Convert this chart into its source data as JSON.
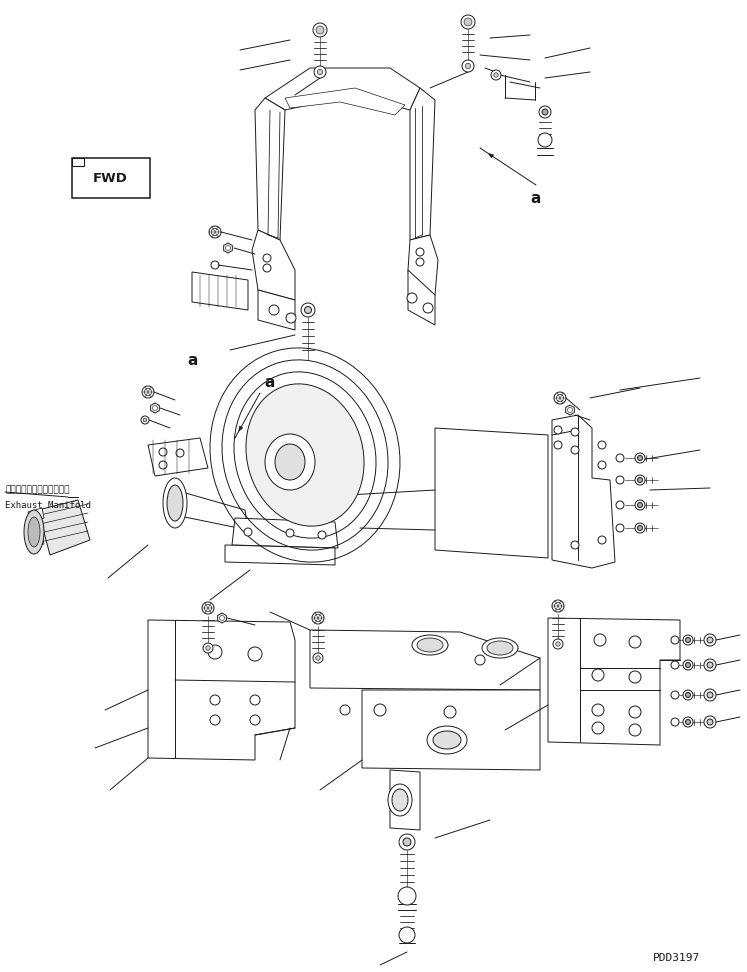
{
  "bg_color": "#ffffff",
  "lc": "#1a1a1a",
  "lw": 0.7,
  "fig_width": 7.47,
  "fig_height": 9.72,
  "dpi": 100,
  "watermark": "PDD3197",
  "fwd_label": "FWD",
  "ann_a": "a",
  "exhaust_jp": "エキゾーストマニホールド",
  "exhaust_en": "Exhaust Manifold"
}
